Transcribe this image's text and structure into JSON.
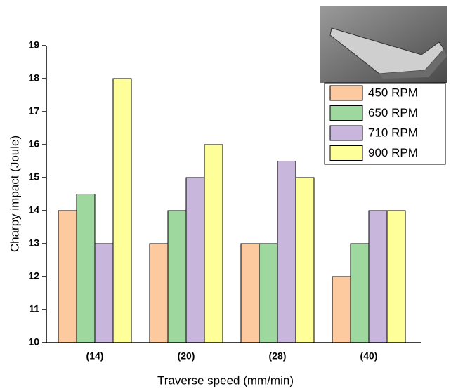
{
  "chart_data": {
    "type": "bar",
    "x_label": "Traverse speed (mm/min)",
    "y_label": "Charpy impact (Joule)",
    "categories": [
      "(14)",
      "(20)",
      "(28)",
      "(40)"
    ],
    "series": [
      {
        "name": "450 RPM",
        "color": "#fdc99f",
        "values": [
          14,
          13,
          13,
          12
        ]
      },
      {
        "name": "650 RPM",
        "color": "#9fd89f",
        "values": [
          14.5,
          14,
          13,
          13
        ]
      },
      {
        "name": "710 RPM",
        "color": "#c8b6dc",
        "values": [
          13,
          15,
          15.5,
          14
        ]
      },
      {
        "name": "900 RPM",
        "color": "#ffff9a",
        "values": [
          18,
          16,
          15,
          14
        ]
      }
    ],
    "ylim": [
      10,
      19
    ],
    "yticks": [
      10,
      11,
      12,
      13,
      14,
      15,
      16,
      17,
      18,
      19
    ],
    "legend": "upper right"
  }
}
